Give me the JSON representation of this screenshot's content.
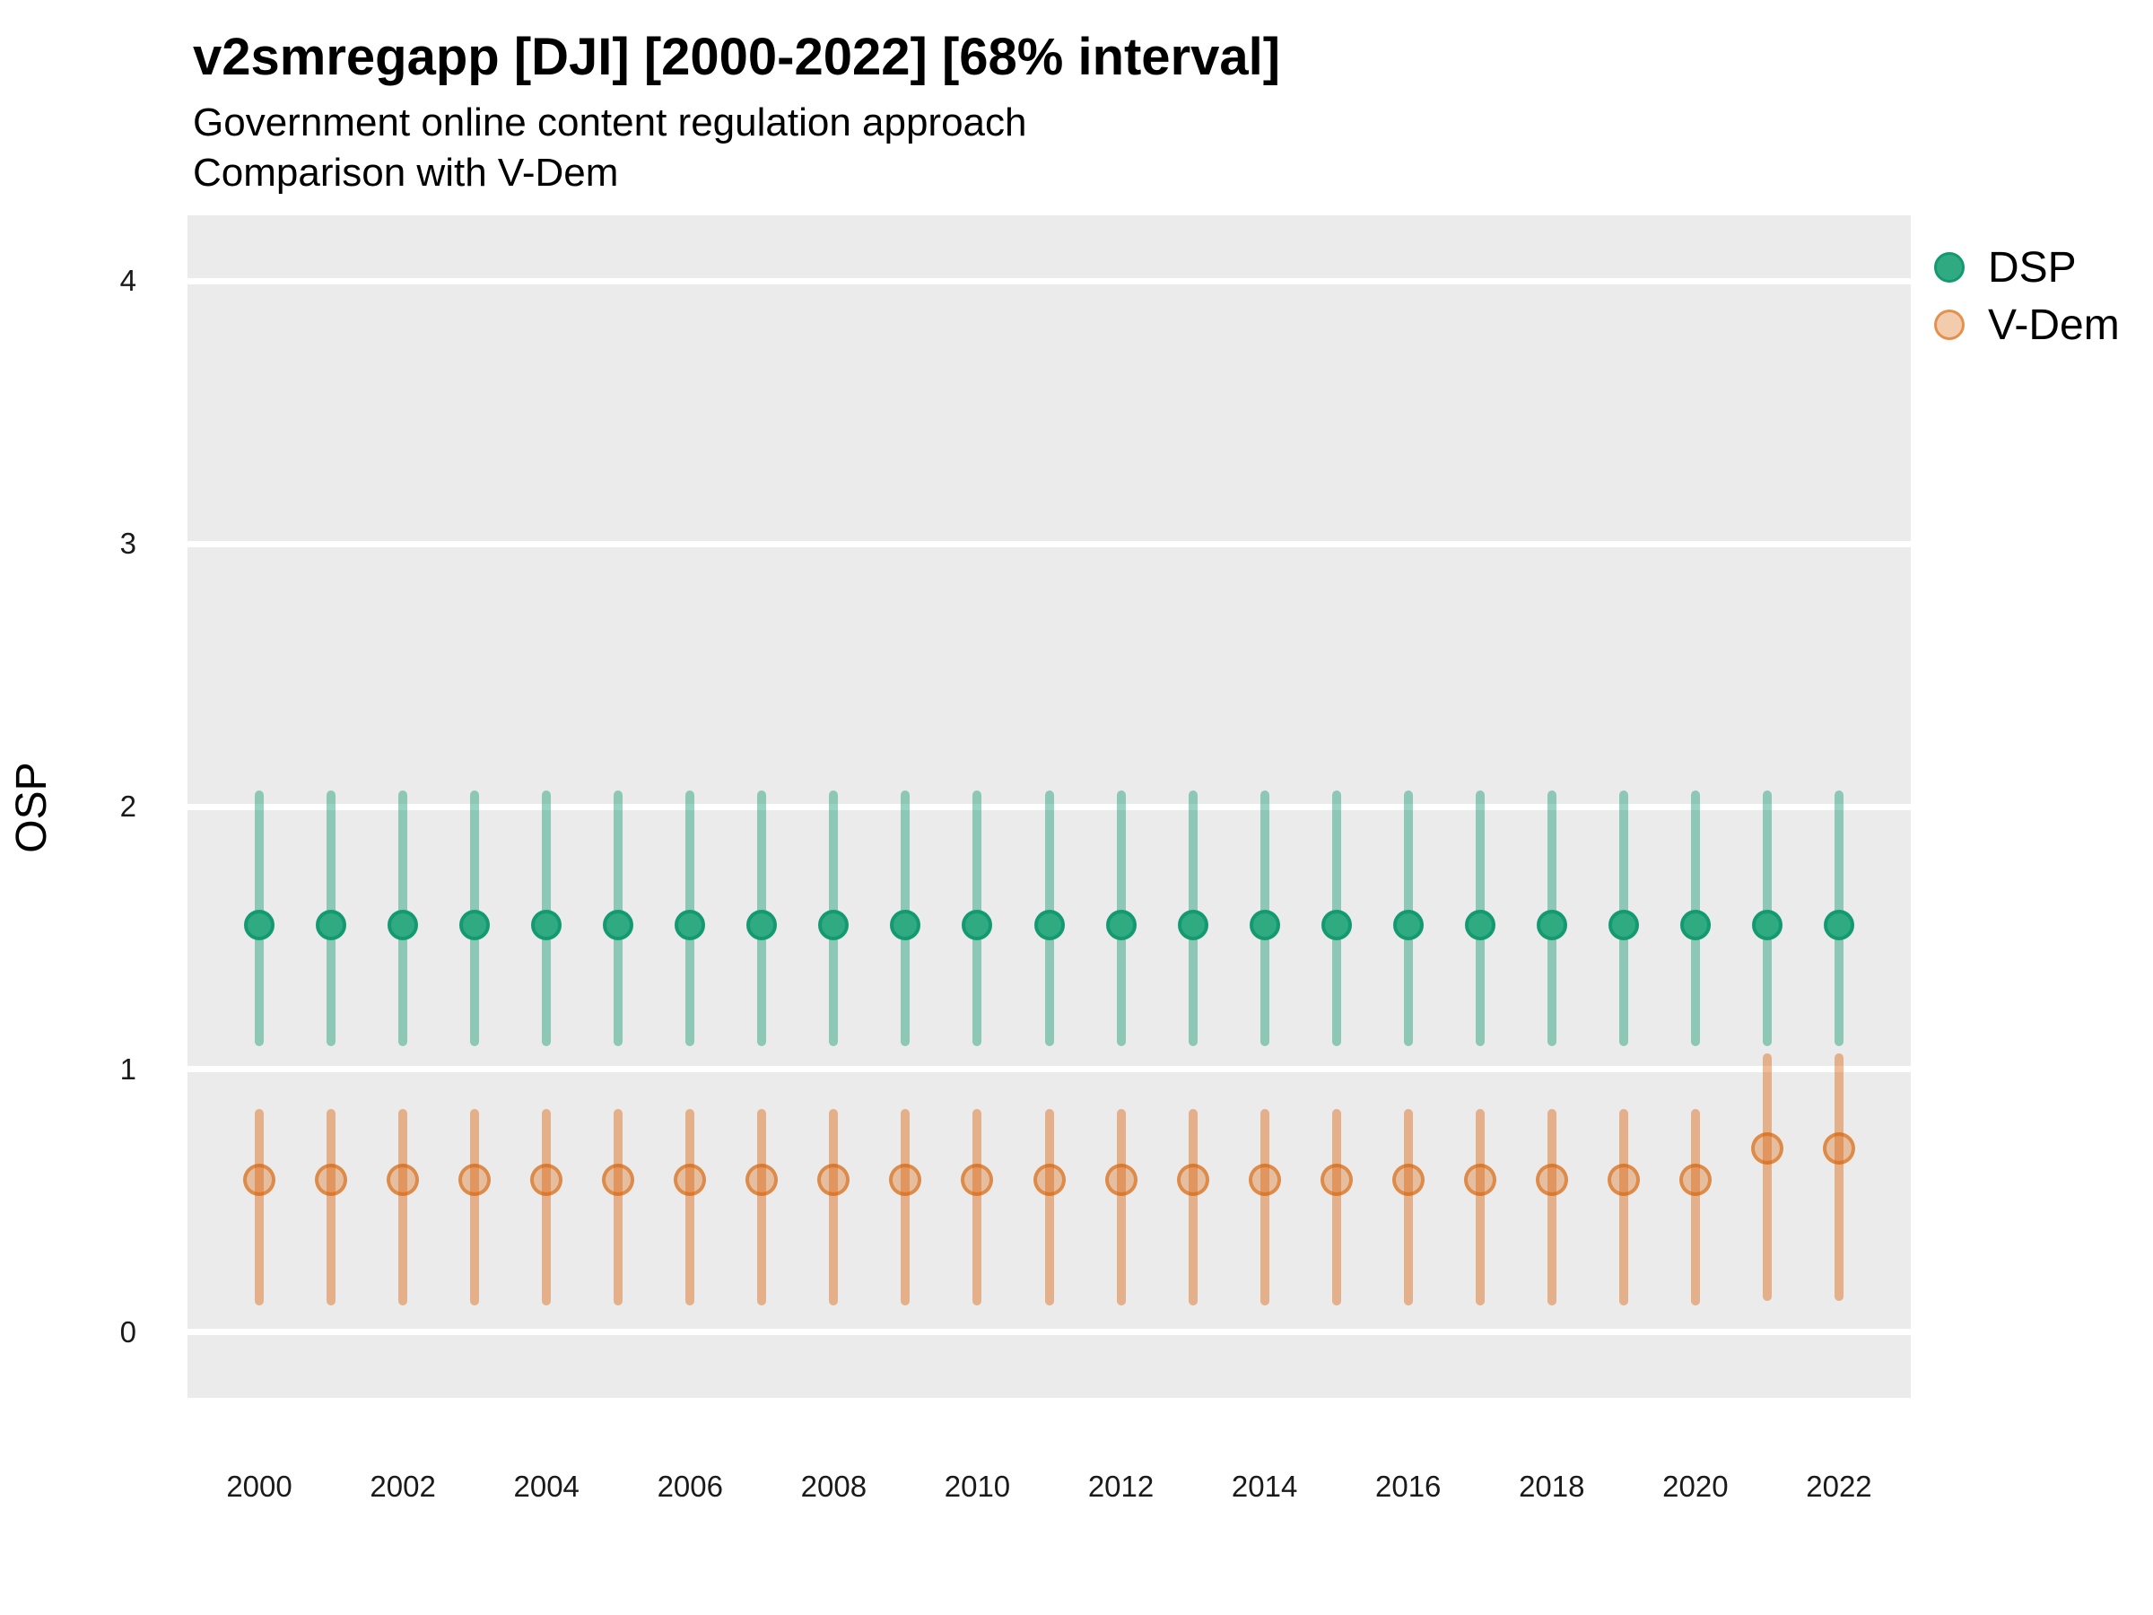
{
  "chart_data": {
    "type": "pointrange-scatter",
    "title": "v2smregapp [DJI] [2000-2022] [68% interval]",
    "subtitle1": "Government online content regulation approach",
    "subtitle2": "Comparison with V-Dem",
    "ylabel": "OSP",
    "xlabel": "",
    "interval_level": "68%",
    "grid": "horizontal-major-only",
    "panel_background": "#ebebeb",
    "gridline_color": "#ffffff",
    "legend_position": "right-top",
    "ylim": [
      -0.25,
      4.25
    ],
    "yticks": [
      0,
      1,
      2,
      3,
      4
    ],
    "xlim": [
      1999.0,
      2023.0
    ],
    "xticks": [
      2000,
      2002,
      2004,
      2006,
      2008,
      2010,
      2012,
      2014,
      2016,
      2018,
      2020,
      2022
    ],
    "years": [
      2000,
      2001,
      2002,
      2003,
      2004,
      2005,
      2006,
      2007,
      2008,
      2009,
      2010,
      2011,
      2012,
      2013,
      2014,
      2015,
      2016,
      2017,
      2018,
      2019,
      2020,
      2021,
      2022
    ],
    "series": [
      {
        "name": "DSP",
        "base_color": "#1b9e77",
        "line_color": "rgba(27,158,119,0.45)",
        "point_fill": "#30aa81",
        "point_stroke": "#149a70",
        "point_diameter": 34,
        "estimate": [
          1.55,
          1.55,
          1.55,
          1.55,
          1.55,
          1.55,
          1.55,
          1.55,
          1.55,
          1.55,
          1.55,
          1.55,
          1.55,
          1.55,
          1.55,
          1.55,
          1.55,
          1.55,
          1.55,
          1.55,
          1.55,
          1.55,
          1.55
        ],
        "lower": [
          1.09,
          1.09,
          1.09,
          1.09,
          1.09,
          1.09,
          1.09,
          1.09,
          1.09,
          1.09,
          1.09,
          1.09,
          1.09,
          1.09,
          1.09,
          1.09,
          1.09,
          1.09,
          1.09,
          1.09,
          1.09,
          1.09,
          1.09
        ],
        "upper": [
          2.06,
          2.06,
          2.06,
          2.06,
          2.06,
          2.06,
          2.06,
          2.06,
          2.06,
          2.06,
          2.06,
          2.06,
          2.06,
          2.06,
          2.06,
          2.06,
          2.06,
          2.06,
          2.06,
          2.06,
          2.06,
          2.06,
          2.06
        ]
      },
      {
        "name": "V-Dem",
        "base_color": "#d95f02",
        "line_color": "rgba(217,95,2,0.42)",
        "point_fill": "rgba(217,95,2,0.32)",
        "point_stroke": "rgba(217,95,2,0.55)",
        "point_diameter": 36,
        "estimate": [
          0.58,
          0.58,
          0.58,
          0.58,
          0.58,
          0.58,
          0.58,
          0.58,
          0.58,
          0.58,
          0.58,
          0.58,
          0.58,
          0.58,
          0.58,
          0.58,
          0.58,
          0.58,
          0.58,
          0.58,
          0.58,
          0.7,
          0.7
        ],
        "lower": [
          0.1,
          0.1,
          0.1,
          0.1,
          0.1,
          0.1,
          0.1,
          0.1,
          0.1,
          0.1,
          0.1,
          0.1,
          0.1,
          0.1,
          0.1,
          0.1,
          0.1,
          0.1,
          0.1,
          0.1,
          0.1,
          0.12,
          0.12
        ],
        "upper": [
          0.85,
          0.85,
          0.85,
          0.85,
          0.85,
          0.85,
          0.85,
          0.85,
          0.85,
          0.85,
          0.85,
          0.85,
          0.85,
          0.85,
          0.85,
          0.85,
          0.85,
          0.85,
          0.85,
          0.85,
          0.85,
          1.06,
          1.06
        ]
      }
    ]
  }
}
